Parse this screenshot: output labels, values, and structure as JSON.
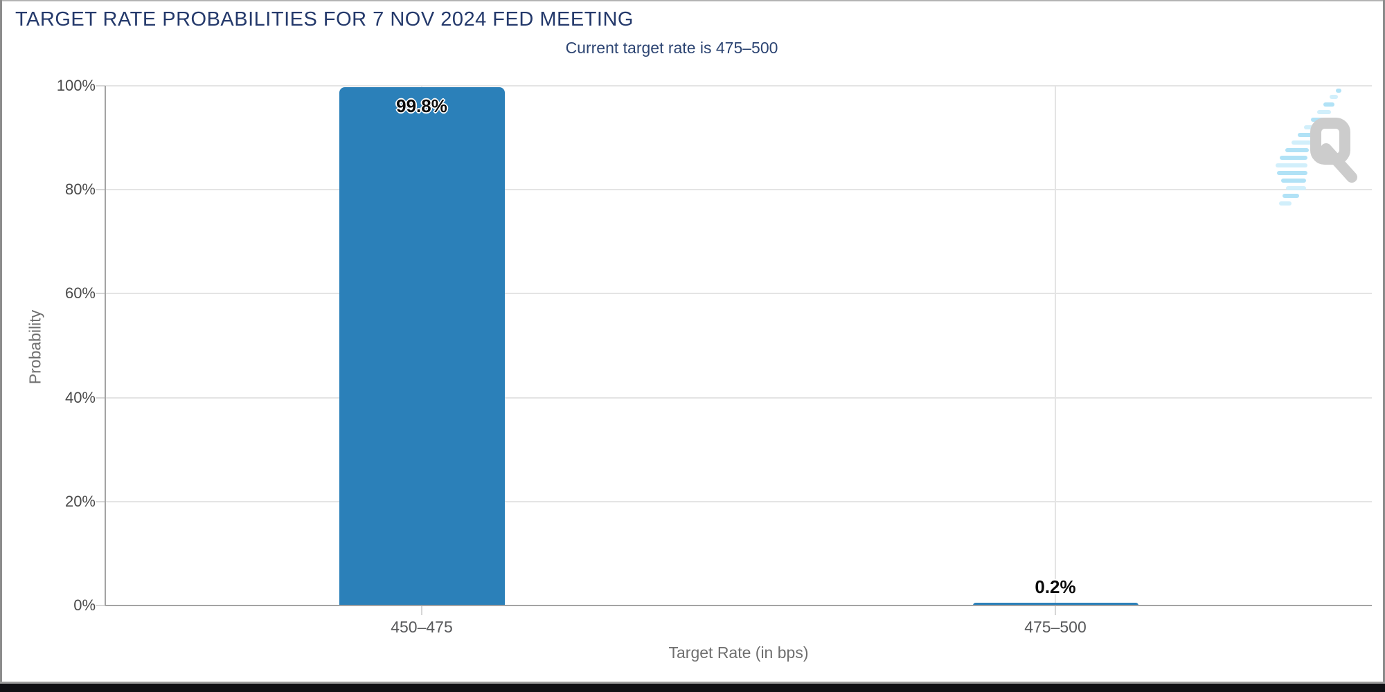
{
  "header": {
    "title": "TARGET RATE PROBABILITIES FOR 7 NOV 2024 FED MEETING",
    "subtitle": "Current target rate is 475–500"
  },
  "watermark": {
    "name": "quikstrike-q-logo",
    "letter": "Q"
  },
  "chart_data": {
    "type": "bar",
    "title": "TARGET RATE PROBABILITIES FOR 7 NOV 2024 FED MEETING",
    "subtitle": "Current target rate is 475–500",
    "categories": [
      "450–475",
      "475–500"
    ],
    "series": [
      {
        "name": "Probability",
        "values": [
          99.8,
          0.2
        ]
      }
    ],
    "value_labels": [
      "99.8%",
      "0.2%"
    ],
    "xlabel": "Target Rate (in bps)",
    "ylabel": "Probability",
    "ylim": [
      0,
      100
    ],
    "yticks": [
      0,
      20,
      40,
      60,
      80,
      100
    ],
    "ytick_labels": [
      "0%",
      "20%",
      "40%",
      "60%",
      "80%",
      "100%"
    ],
    "grid": true,
    "legend": "none",
    "bar_color": "#2b80b9",
    "gridline_color": "#e4e4e4",
    "axis_line_color": "#a3a3a3",
    "title_color": "#24396b"
  }
}
